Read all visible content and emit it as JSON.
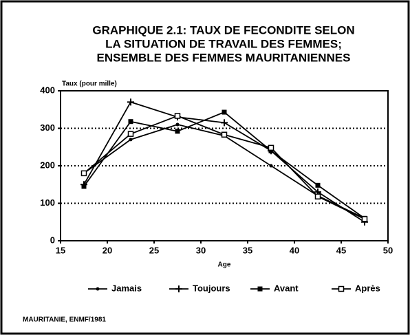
{
  "chart_data": {
    "type": "line",
    "title": [
      "GRAPHIQUE 2.1: TAUX DE FECONDITE SELON",
      "LA SITUATION DE TRAVAIL DES FEMMES;",
      "ENSEMBLE DES FEMMES MAURITANIENNES"
    ],
    "y_label": "Taux (pour mille)",
    "x_label": "Age",
    "source": "MAURITANIE, ENMF/1981",
    "x": [
      17.5,
      22.5,
      27.5,
      32.5,
      37.5,
      42.5,
      47.5
    ],
    "series": [
      {
        "name": "Jamais",
        "color": "#000",
        "marker": "dot",
        "values": [
          180,
          270,
          310,
          280,
          200,
          120,
          60
        ]
      },
      {
        "name": "Toujours",
        "color": "#000",
        "marker": "plus",
        "values": [
          150,
          370,
          330,
          315,
          240,
          130,
          50
        ]
      },
      {
        "name": "Avant",
        "color": "#000",
        "marker": "filled-square",
        "values": [
          145,
          318,
          292,
          343,
          240,
          148,
          60
        ]
      },
      {
        "name": "Après",
        "color": "#000",
        "marker": "open-square",
        "values": [
          180,
          285,
          333,
          283,
          248,
          118,
          58
        ]
      }
    ],
    "xlim": [
      15,
      50
    ],
    "xticks": [
      15,
      20,
      25,
      30,
      35,
      40,
      45,
      50
    ],
    "ylim": [
      0,
      400
    ],
    "yticks": [
      0,
      100,
      200,
      300,
      400
    ],
    "grid": true
  }
}
